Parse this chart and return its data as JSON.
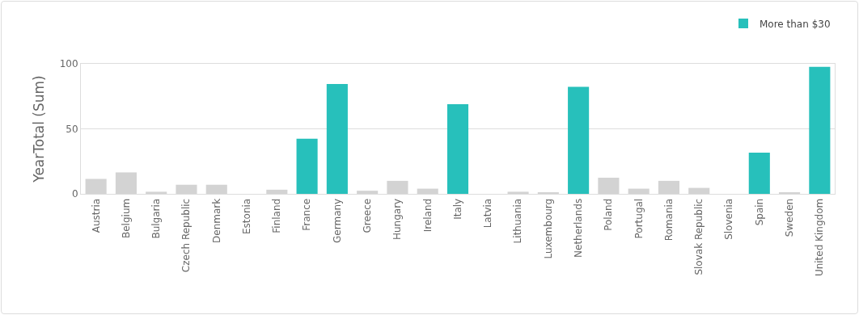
{
  "chart_data": {
    "type": "bar",
    "ylabel": "YearTotal (Sum)",
    "categories": [
      "Austria",
      "Belgium",
      "Bulgaria",
      "Czech Republic",
      "Denmark",
      "Estonia",
      "Finland",
      "France",
      "Germany",
      "Greece",
      "Hungary",
      "Ireland",
      "Italy",
      "Latvia",
      "Lithuania",
      "Luxembourg",
      "Netherlands",
      "Poland",
      "Portugal",
      "Romania",
      "Slovak Republic",
      "Slovenia",
      "Spain",
      "Sweden",
      "United Kingdom"
    ],
    "series": [
      {
        "color": "#d3d3d3",
        "values": [
          11.5,
          16.5,
          1.6,
          7,
          7,
          0,
          3.2,
          null,
          null,
          2.4,
          10,
          4,
          null,
          0,
          1.6,
          1,
          null,
          12.4,
          4,
          10,
          4.6,
          0,
          null,
          1,
          null
        ]
      },
      {
        "name": "More than $30",
        "color": "#27c0bb",
        "values": [
          null,
          null,
          null,
          null,
          null,
          null,
          null,
          42.4,
          84.5,
          null,
          null,
          null,
          68.9,
          null,
          null,
          null,
          82.3,
          null,
          null,
          null,
          null,
          null,
          31.7,
          null,
          97.6
        ]
      }
    ],
    "ylim": [
      0,
      100
    ],
    "yticks": [
      0,
      50,
      100
    ],
    "grid": "y",
    "legend": "top right"
  }
}
